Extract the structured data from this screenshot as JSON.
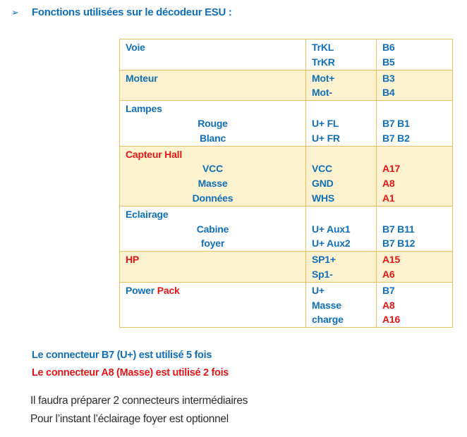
{
  "page": {
    "title_bullet": "➢",
    "title": "Fonctions utilisées sur le décodeur ESU :"
  },
  "colors": {
    "blue": "#0F6FB8",
    "red": "#E21717",
    "cream": "#FCF2D0",
    "border": "#E7C162"
  },
  "table": {
    "rows": [
      {
        "shaded": false,
        "cells": [
          {
            "lines": [
              {
                "align": "left",
                "segs": [
                  {
                    "t": "Voie",
                    "c": "b"
                  }
                ]
              },
              {
                "segs": []
              }
            ]
          },
          {
            "lines": [
              {
                "segs": [
                  {
                    "t": "TrKL",
                    "c": "b"
                  }
                ]
              },
              {
                "segs": [
                  {
                    "t": "TrKR",
                    "c": "b"
                  }
                ]
              }
            ]
          },
          {
            "lines": [
              {
                "segs": [
                  {
                    "t": "B6",
                    "c": "b"
                  }
                ]
              },
              {
                "segs": [
                  {
                    "t": "B5",
                    "c": "b"
                  }
                ]
              }
            ]
          }
        ]
      },
      {
        "shaded": true,
        "cells": [
          {
            "lines": [
              {
                "align": "left",
                "segs": [
                  {
                    "t": "Moteur",
                    "c": "b"
                  }
                ]
              },
              {
                "segs": []
              }
            ]
          },
          {
            "lines": [
              {
                "segs": [
                  {
                    "t": "Mot+",
                    "c": "b"
                  }
                ]
              },
              {
                "segs": [
                  {
                    "t": "Mot-",
                    "c": "b"
                  }
                ]
              }
            ]
          },
          {
            "lines": [
              {
                "segs": [
                  {
                    "t": "B3",
                    "c": "b"
                  }
                ]
              },
              {
                "segs": [
                  {
                    "t": "B4",
                    "c": "b"
                  }
                ]
              }
            ]
          }
        ]
      },
      {
        "shaded": false,
        "cells": [
          {
            "lines": [
              {
                "align": "left",
                "segs": [
                  {
                    "t": "Lampes",
                    "c": "b"
                  }
                ]
              },
              {
                "align": "center",
                "segs": [
                  {
                    "t": "Rouge",
                    "c": "b"
                  }
                ]
              },
              {
                "align": "center",
                "segs": [
                  {
                    "t": "Blanc",
                    "c": "b"
                  }
                ]
              }
            ]
          },
          {
            "lines": [
              {
                "segs": []
              },
              {
                "segs": [
                  {
                    "t": "U+ FL",
                    "c": "b"
                  }
                ]
              },
              {
                "segs": [
                  {
                    "t": "U+ FR",
                    "c": "b"
                  }
                ]
              }
            ]
          },
          {
            "lines": [
              {
                "segs": []
              },
              {
                "segs": [
                  {
                    "t": "B7 B1",
                    "c": "b"
                  }
                ]
              },
              {
                "segs": [
                  {
                    "t": "B7 B2",
                    "c": "b"
                  }
                ]
              }
            ]
          }
        ]
      },
      {
        "shaded": true,
        "cells": [
          {
            "lines": [
              {
                "align": "left",
                "segs": [
                  {
                    "t": "Capteur Hall",
                    "c": "r"
                  }
                ]
              },
              {
                "align": "center",
                "segs": [
                  {
                    "t": "VCC",
                    "c": "b"
                  }
                ]
              },
              {
                "align": "center",
                "segs": [
                  {
                    "t": "Masse",
                    "c": "b"
                  }
                ]
              },
              {
                "align": "center",
                "segs": [
                  {
                    "t": "Données",
                    "c": "b"
                  }
                ]
              }
            ]
          },
          {
            "lines": [
              {
                "segs": []
              },
              {
                "segs": [
                  {
                    "t": "VCC",
                    "c": "b"
                  }
                ]
              },
              {
                "segs": [
                  {
                    "t": "GND",
                    "c": "b"
                  }
                ]
              },
              {
                "segs": [
                  {
                    "t": "WHS",
                    "c": "b"
                  }
                ]
              }
            ]
          },
          {
            "lines": [
              {
                "segs": []
              },
              {
                "segs": [
                  {
                    "t": "A17",
                    "c": "r"
                  }
                ]
              },
              {
                "segs": [
                  {
                    "t": "A8",
                    "c": "r"
                  }
                ]
              },
              {
                "segs": [
                  {
                    "t": "A1",
                    "c": "r"
                  }
                ]
              }
            ]
          }
        ]
      },
      {
        "shaded": false,
        "cells": [
          {
            "lines": [
              {
                "align": "left",
                "segs": [
                  {
                    "t": "Eclairage",
                    "c": "b"
                  }
                ]
              },
              {
                "align": "center",
                "segs": [
                  {
                    "t": "Cabine",
                    "c": "b"
                  }
                ]
              },
              {
                "align": "center",
                "segs": [
                  {
                    "t": "foyer",
                    "c": "b"
                  }
                ]
              }
            ]
          },
          {
            "lines": [
              {
                "segs": []
              },
              {
                "segs": [
                  {
                    "t": "U+ Aux1",
                    "c": "b"
                  }
                ]
              },
              {
                "segs": [
                  {
                    "t": "U+ Aux2",
                    "c": "b"
                  }
                ]
              }
            ]
          },
          {
            "lines": [
              {
                "segs": []
              },
              {
                "segs": [
                  {
                    "t": "B7 B11",
                    "c": "b"
                  }
                ]
              },
              {
                "segs": [
                  {
                    "t": "B7 B12",
                    "c": "b"
                  }
                ]
              }
            ]
          }
        ]
      },
      {
        "shaded": true,
        "cells": [
          {
            "lines": [
              {
                "align": "left",
                "segs": [
                  {
                    "t": "HP",
                    "c": "r"
                  }
                ]
              },
              {
                "segs": []
              }
            ]
          },
          {
            "lines": [
              {
                "segs": [
                  {
                    "t": "SP1+",
                    "c": "b"
                  }
                ]
              },
              {
                "segs": [
                  {
                    "t": "Sp1-",
                    "c": "b"
                  }
                ]
              }
            ]
          },
          {
            "lines": [
              {
                "segs": [
                  {
                    "t": "A15",
                    "c": "r"
                  }
                ]
              },
              {
                "segs": [
                  {
                    "t": "A6",
                    "c": "r"
                  }
                ]
              }
            ]
          }
        ]
      },
      {
        "shaded": false,
        "cells": [
          {
            "lines": [
              {
                "align": "left",
                "segs": [
                  {
                    "t": "Power ",
                    "c": "b"
                  },
                  {
                    "t": "Pack",
                    "c": "r"
                  }
                ]
              },
              {
                "segs": []
              },
              {
                "segs": []
              }
            ]
          },
          {
            "lines": [
              {
                "segs": [
                  {
                    "t": "U+",
                    "c": "b"
                  }
                ]
              },
              {
                "segs": [
                  {
                    "t": "Masse",
                    "c": "b"
                  }
                ]
              },
              {
                "segs": [
                  {
                    "t": "charge",
                    "c": "b"
                  }
                ]
              }
            ]
          },
          {
            "lines": [
              {
                "segs": [
                  {
                    "t": "B7",
                    "c": "b"
                  }
                ]
              },
              {
                "segs": [
                  {
                    "t": "A8",
                    "c": "r"
                  }
                ]
              },
              {
                "segs": [
                  {
                    "t": "A16",
                    "c": "r"
                  }
                ]
              }
            ]
          }
        ]
      }
    ]
  },
  "notes": [
    {
      "text": "Le connecteur B7 (U+) est utilisé 5 fois"
    },
    {
      "text": "Le connecteur A8 (Masse) est utilisé 2 fois"
    }
  ],
  "footer": [
    "Il faudra préparer 2 connecteurs intermédiaires",
    "Pour l’instant l’éclairage foyer est optionnel"
  ]
}
